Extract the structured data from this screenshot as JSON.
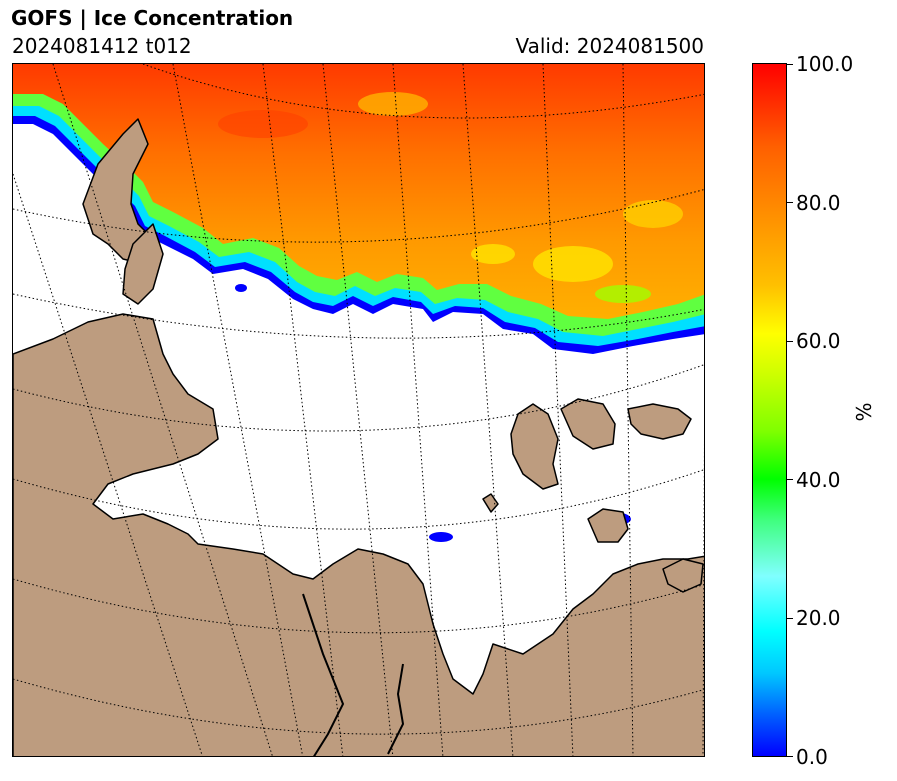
{
  "header": {
    "title": "GOFS  |  Ice Concentration",
    "run_info": "2024081412 t012",
    "valid_time": "Valid: 2024081500"
  },
  "map": {
    "projection": "polar stereographic",
    "graticule": "dotted",
    "land_color": "#bd9c7f",
    "ocean_color": "#ffffff",
    "coastline_color": "#000000"
  },
  "colorbar": {
    "label": "%",
    "ticks": [
      "0.0",
      "20.0",
      "40.0",
      "60.0",
      "80.0",
      "100.0"
    ],
    "range": [
      0,
      100
    ],
    "colormap": [
      "#0000ff",
      "#00ffff",
      "#00ff00",
      "#ffff00",
      "#ff9000",
      "#ff0000"
    ]
  }
}
